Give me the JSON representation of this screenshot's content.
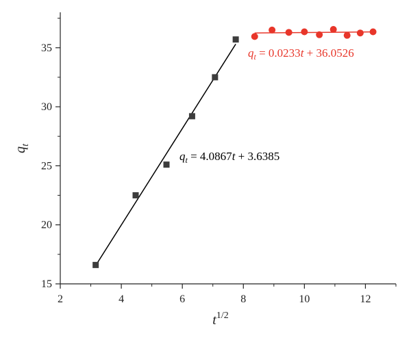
{
  "chart_data": {
    "type": "scatter",
    "xlabel": {
      "base": "t",
      "sup": "1/2"
    },
    "ylabel": {
      "base": "q",
      "sub": "t"
    },
    "xlim": [
      2,
      13
    ],
    "ylim": [
      15,
      38
    ],
    "xticks": [
      2,
      4,
      6,
      8,
      10,
      12
    ],
    "yticks": [
      15,
      20,
      25,
      30,
      35
    ],
    "grid": false,
    "legend": "none",
    "series": [
      {
        "marker": "square",
        "color": "#3d3d3d",
        "x": [
          3.16,
          4.47,
          5.48,
          6.32,
          7.07,
          7.75
        ],
        "y": [
          16.6,
          22.5,
          25.1,
          29.2,
          32.5,
          35.7
        ],
        "fit": {
          "slope": 4.0867,
          "intercept": 3.6385,
          "x_range": [
            3.16,
            7.75
          ],
          "color": "#000000"
        },
        "equation": {
          "lhs": "q",
          "lhs_sub": "t",
          "prefix": " = 4.0867",
          "var": "t",
          "suffix": " + 3.6385",
          "color": "#000000"
        }
      },
      {
        "marker": "circle",
        "color": "#e8362a",
        "x": [
          8.37,
          8.94,
          9.49,
          10.0,
          10.49,
          10.95,
          11.4,
          11.83,
          12.25
        ],
        "y": [
          35.95,
          36.5,
          36.3,
          36.35,
          36.1,
          36.55,
          36.05,
          36.25,
          36.35
        ],
        "fit": {
          "slope": 0.0233,
          "intercept": 36.0526,
          "x_range": [
            8.37,
            12.25
          ],
          "color": "#e8362a"
        },
        "equation": {
          "lhs": "q",
          "lhs_sub": "t",
          "prefix": " = 0.0233",
          "var": "t",
          "suffix": " + 36.0526",
          "color": "#e8362a"
        }
      }
    ]
  }
}
